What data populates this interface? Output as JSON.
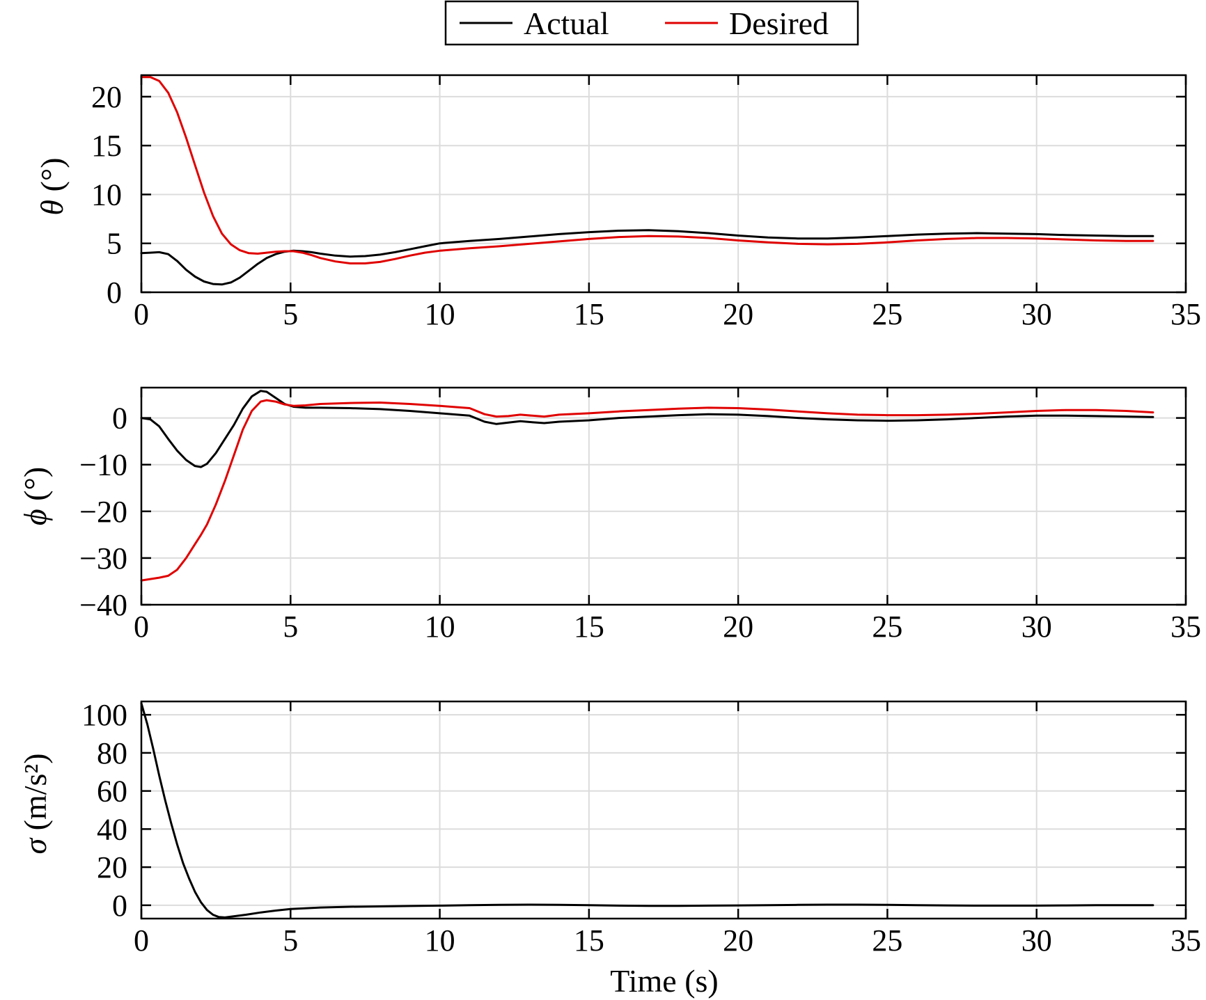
{
  "legend": {
    "entries": [
      {
        "label": "Actual",
        "color": "#000000"
      },
      {
        "label": "Desired",
        "color": "#e00000"
      }
    ],
    "placement": "top-center"
  },
  "chart_data": [
    {
      "type": "line",
      "ylabel_symbol": "θ",
      "ylabel_unit": "(°)",
      "xlim": [
        0,
        35
      ],
      "ylim": [
        0,
        22.2
      ],
      "xticks": [
        0,
        5,
        10,
        15,
        20,
        25,
        30,
        35
      ],
      "yticks": [
        0,
        5,
        10,
        15,
        20
      ],
      "grid": true,
      "series": [
        {
          "name": "Actual",
          "color": "#000000",
          "x": [
            0,
            0.3,
            0.6,
            0.9,
            1.2,
            1.5,
            1.8,
            2.1,
            2.4,
            2.7,
            3.0,
            3.3,
            3.6,
            3.9,
            4.2,
            4.5,
            4.8,
            5.1,
            5.4,
            5.7,
            6.0,
            6.5,
            7.0,
            7.5,
            8.0,
            8.5,
            9.0,
            9.5,
            10.0,
            11,
            12,
            13,
            14,
            15,
            16,
            17,
            18,
            19,
            20,
            21,
            22,
            23,
            24,
            25,
            26,
            27,
            28,
            29,
            30,
            31,
            32,
            33,
            33.9
          ],
          "y": [
            4.0,
            4.05,
            4.1,
            3.9,
            3.2,
            2.3,
            1.6,
            1.1,
            0.85,
            0.8,
            1.0,
            1.5,
            2.2,
            2.9,
            3.5,
            3.9,
            4.15,
            4.25,
            4.2,
            4.1,
            3.95,
            3.75,
            3.65,
            3.7,
            3.85,
            4.1,
            4.4,
            4.7,
            5.0,
            5.25,
            5.45,
            5.7,
            5.95,
            6.15,
            6.3,
            6.35,
            6.25,
            6.05,
            5.8,
            5.6,
            5.5,
            5.5,
            5.6,
            5.75,
            5.9,
            6.0,
            6.05,
            6.0,
            5.95,
            5.85,
            5.8,
            5.75,
            5.75
          ]
        },
        {
          "name": "Desired",
          "color": "#e00000",
          "x": [
            0,
            0.3,
            0.6,
            0.9,
            1.2,
            1.5,
            1.8,
            2.1,
            2.4,
            2.7,
            3.0,
            3.3,
            3.6,
            3.9,
            4.2,
            4.5,
            4.8,
            5.1,
            5.4,
            5.7,
            6.0,
            6.5,
            7.0,
            7.5,
            8.0,
            8.5,
            9.0,
            9.5,
            10.0,
            11,
            12,
            13,
            14,
            15,
            16,
            17,
            18,
            19,
            20,
            21,
            22,
            23,
            24,
            25,
            26,
            27,
            28,
            29,
            30,
            31,
            32,
            33,
            33.9
          ],
          "y": [
            22.0,
            22.0,
            21.6,
            20.4,
            18.4,
            15.8,
            13.0,
            10.2,
            7.8,
            6.0,
            4.9,
            4.3,
            4.0,
            3.95,
            4.05,
            4.15,
            4.2,
            4.2,
            4.05,
            3.8,
            3.5,
            3.15,
            2.95,
            2.95,
            3.1,
            3.4,
            3.75,
            4.05,
            4.25,
            4.5,
            4.7,
            4.95,
            5.2,
            5.45,
            5.65,
            5.75,
            5.7,
            5.55,
            5.3,
            5.1,
            4.95,
            4.9,
            4.95,
            5.1,
            5.3,
            5.45,
            5.55,
            5.55,
            5.5,
            5.4,
            5.3,
            5.25,
            5.25
          ]
        }
      ]
    },
    {
      "type": "line",
      "ylabel_symbol": "ϕ",
      "ylabel_unit": "(°)",
      "xlim": [
        0,
        35
      ],
      "ylim": [
        -40,
        6.5
      ],
      "xticks": [
        0,
        5,
        10,
        15,
        20,
        25,
        30,
        35
      ],
      "yticks": [
        -40,
        -30,
        -20,
        -10,
        0
      ],
      "ytick_labels": [
        "−40",
        "−30",
        "−20",
        "−10",
        "0"
      ],
      "grid": true,
      "series": [
        {
          "name": "Actual",
          "color": "#000000",
          "x": [
            0,
            0.3,
            0.6,
            0.9,
            1.2,
            1.5,
            1.8,
            2.0,
            2.2,
            2.5,
            2.8,
            3.1,
            3.4,
            3.7,
            4.0,
            4.2,
            4.5,
            4.8,
            5.1,
            5.5,
            6,
            7,
            8,
            9,
            10,
            11,
            11.5,
            11.9,
            12.3,
            12.7,
            13.1,
            13.5,
            14,
            15,
            16,
            17,
            18,
            19,
            20,
            21,
            22,
            23,
            24,
            25,
            26,
            27,
            28,
            29,
            30,
            31,
            32,
            33,
            33.9
          ],
          "y": [
            0.0,
            -0.3,
            -1.8,
            -4.5,
            -7.0,
            -9.0,
            -10.3,
            -10.5,
            -9.8,
            -7.5,
            -4.5,
            -1.5,
            2.0,
            4.6,
            5.8,
            5.6,
            4.3,
            3.0,
            2.4,
            2.2,
            2.2,
            2.1,
            1.9,
            1.5,
            1.0,
            0.5,
            -0.8,
            -1.3,
            -1.0,
            -0.7,
            -0.9,
            -1.1,
            -0.8,
            -0.5,
            0.0,
            0.3,
            0.6,
            0.8,
            0.7,
            0.4,
            0.0,
            -0.3,
            -0.5,
            -0.6,
            -0.5,
            -0.3,
            0.0,
            0.3,
            0.5,
            0.5,
            0.4,
            0.3,
            0.2
          ]
        },
        {
          "name": "Desired",
          "color": "#e00000",
          "x": [
            0,
            0.3,
            0.6,
            0.9,
            1.2,
            1.5,
            1.8,
            2.0,
            2.2,
            2.5,
            2.8,
            3.1,
            3.4,
            3.7,
            4.0,
            4.2,
            4.5,
            4.8,
            5.1,
            5.5,
            6,
            7,
            8,
            9,
            10,
            11,
            11.5,
            11.9,
            12.3,
            12.7,
            13.1,
            13.5,
            14,
            15,
            16,
            17,
            18,
            19,
            20,
            21,
            22,
            23,
            24,
            25,
            26,
            27,
            28,
            29,
            30,
            31,
            32,
            33,
            33.9
          ],
          "y": [
            -34.8,
            -34.5,
            -34.2,
            -33.8,
            -32.5,
            -30.0,
            -27.0,
            -25.0,
            -22.8,
            -18.5,
            -13.5,
            -8.0,
            -2.5,
            1.5,
            3.5,
            3.8,
            3.5,
            2.9,
            2.6,
            2.7,
            3.0,
            3.2,
            3.3,
            3.0,
            2.6,
            2.1,
            0.8,
            0.3,
            0.4,
            0.7,
            0.5,
            0.3,
            0.7,
            1.0,
            1.4,
            1.7,
            2.0,
            2.2,
            2.1,
            1.8,
            1.4,
            1.0,
            0.7,
            0.6,
            0.6,
            0.7,
            0.9,
            1.2,
            1.5,
            1.7,
            1.7,
            1.5,
            1.2
          ]
        }
      ]
    },
    {
      "type": "line",
      "ylabel_symbol": "σ",
      "ylabel_unit": "(m/s²)",
      "xlim": [
        0,
        35
      ],
      "ylim": [
        -7,
        107
      ],
      "xticks": [
        0,
        5,
        10,
        15,
        20,
        25,
        30,
        35
      ],
      "yticks": [
        0,
        20,
        40,
        60,
        80,
        100
      ],
      "grid": true,
      "xlabel": "Time (s)",
      "series": [
        {
          "name": "Actual",
          "color": "#000000",
          "x": [
            0,
            0.2,
            0.4,
            0.6,
            0.8,
            1.0,
            1.2,
            1.4,
            1.6,
            1.8,
            2.0,
            2.2,
            2.4,
            2.6,
            2.8,
            3.0,
            3.5,
            4,
            4.5,
            5,
            6,
            7,
            8,
            9,
            10,
            11,
            12,
            13,
            14,
            15,
            16,
            17,
            18,
            19,
            20,
            21,
            22,
            23,
            24,
            25,
            26,
            27,
            28,
            29,
            30,
            31,
            32,
            33,
            33.9
          ],
          "y": [
            106,
            95,
            82,
            68,
            55,
            43,
            32,
            22,
            14,
            7,
            1.5,
            -2.5,
            -5.0,
            -6.2,
            -6.4,
            -6.0,
            -5.0,
            -3.8,
            -2.8,
            -2.0,
            -1.2,
            -0.8,
            -0.6,
            -0.4,
            -0.2,
            0.0,
            0.2,
            0.3,
            0.2,
            0.0,
            -0.2,
            -0.3,
            -0.3,
            -0.2,
            -0.1,
            0.0,
            0.2,
            0.3,
            0.3,
            0.2,
            0.0,
            -0.1,
            -0.2,
            -0.2,
            -0.2,
            -0.1,
            0.0,
            0.0,
            0.0
          ]
        }
      ]
    }
  ]
}
